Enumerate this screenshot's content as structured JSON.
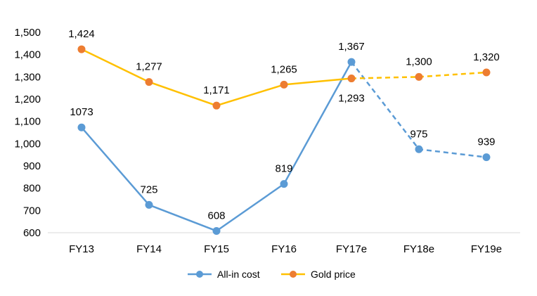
{
  "chart_data": {
    "type": "line",
    "categories": [
      "FY13",
      "FY14",
      "FY15",
      "FY16",
      "FY17e",
      "FY18e",
      "FY19e"
    ],
    "ylim": [
      600,
      1500
    ],
    "yticks": [
      "600",
      "700",
      "800",
      "900",
      "1,000",
      "1,100",
      "1,200",
      "1,300",
      "1,400",
      "1,500"
    ],
    "grid": false,
    "legend_position": "bottom",
    "series": [
      {
        "name": "All-in cost",
        "values": [
          1073,
          725,
          608,
          819,
          1367,
          975,
          939
        ],
        "labels": [
          "1073",
          "725",
          "608",
          "819",
          "1,367",
          "975",
          "939"
        ],
        "color": "#5B9BD5",
        "dashed_from_index": 4
      },
      {
        "name": "Gold price",
        "values": [
          1424,
          1277,
          1171,
          1265,
          1293,
          1300,
          1320
        ],
        "labels": [
          "1,424",
          "1,277",
          "1,171",
          "1,265",
          "1,293",
          "1,300",
          "1,320"
        ],
        "color": "#FFC000",
        "marker_color": "#ED7D31",
        "dashed_from_index": 4
      }
    ]
  }
}
